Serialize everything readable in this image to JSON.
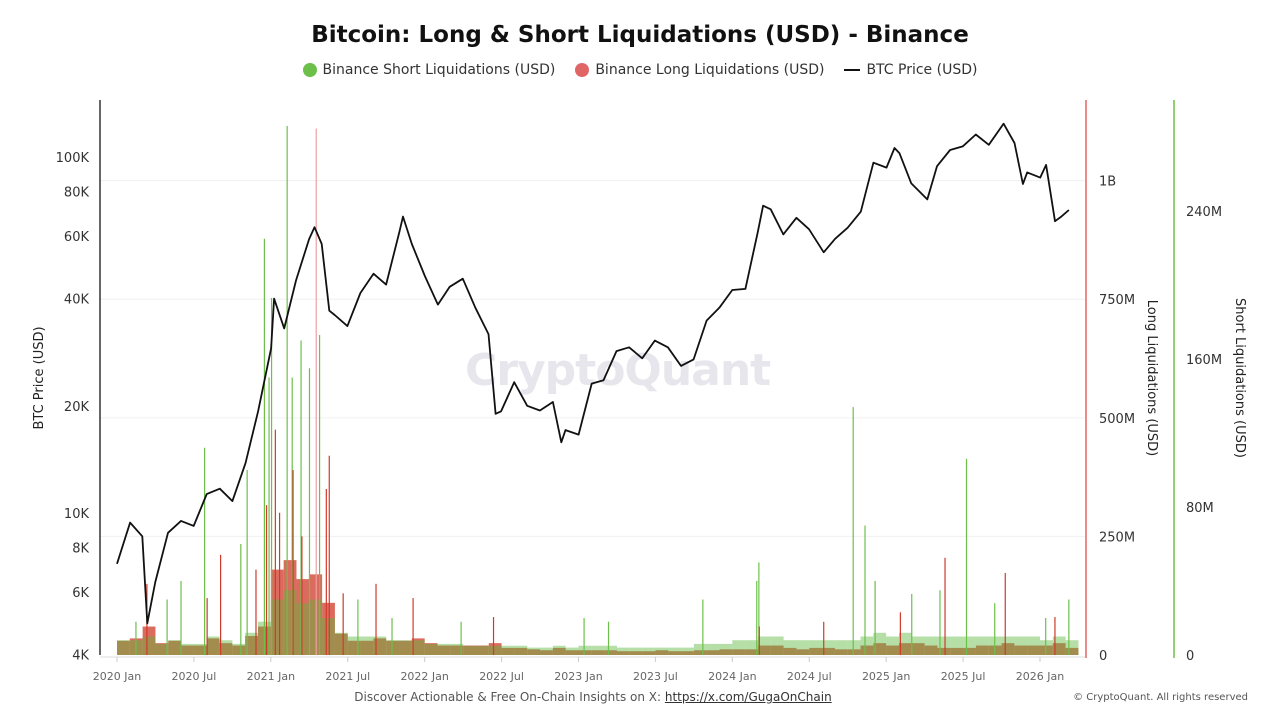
{
  "chart_data": {
    "type": "bar+line",
    "title": "Bitcoin: Long & Short Liquidations (USD) - Binance",
    "legend": {
      "placement": "top-center",
      "items": [
        {
          "label": "Binance Short Liquidations (USD)",
          "color": "#6cc04a",
          "marker": "dot"
        },
        {
          "label": "Binance Long Liquidations (USD)",
          "color": "#e06666",
          "marker": "dot"
        },
        {
          "label": "BTC Price (USD)",
          "color": "#111111",
          "marker": "line"
        }
      ]
    },
    "xlabel": "",
    "x_ticks": [
      "2020 Jan",
      "2020 Jul",
      "2021 Jan",
      "2021 Jul",
      "2022 Jan",
      "2022 Jul",
      "2023 Jan",
      "2023 Jul",
      "2024 Jan",
      "2024 Jul",
      "2025 Jan",
      "2025 Jul",
      "2026 Jan"
    ],
    "x_range": [
      "2020-01-01",
      "2026-03-15"
    ],
    "axes": {
      "price": {
        "label": "BTC Price (USD)",
        "scale": "log",
        "range": [
          4000,
          144000
        ],
        "ticks": [
          {
            "v": 4000,
            "t": "4K"
          },
          {
            "v": 6000,
            "t": "6K"
          },
          {
            "v": 8000,
            "t": "8K"
          },
          {
            "v": 10000,
            "t": "10K"
          },
          {
            "v": 20000,
            "t": "20K"
          },
          {
            "v": 40000,
            "t": "40K"
          },
          {
            "v": 60000,
            "t": "60K"
          },
          {
            "v": 80000,
            "t": "80K"
          },
          {
            "v": 100000,
            "t": "100K"
          }
        ]
      },
      "long": {
        "label": "Long Liquidations (USD)",
        "scale": "linear",
        "range": [
          0,
          1170000000
        ],
        "color": "#e06666",
        "ticks": [
          {
            "v": 0,
            "t": "0"
          },
          {
            "v": 250000000,
            "t": "250M"
          },
          {
            "v": 500000000,
            "t": "500M"
          },
          {
            "v": 750000000,
            "t": "750M"
          },
          {
            "v": 1000000000,
            "t": "1B"
          }
        ]
      },
      "short": {
        "label": "Short Liquidations (USD)",
        "scale": "linear",
        "range": [
          0,
          300000000
        ],
        "color": "#6cc04a",
        "ticks": [
          {
            "v": 0,
            "t": "0"
          },
          {
            "v": 80000000,
            "t": "80M"
          },
          {
            "v": 160000000,
            "t": "160M"
          },
          {
            "v": 240000000,
            "t": "240M"
          }
        ]
      }
    },
    "grid": true,
    "btc_price": [
      [
        "2020-01-01",
        7200
      ],
      [
        "2020-02-01",
        9400
      ],
      [
        "2020-03-01",
        8600
      ],
      [
        "2020-03-13",
        4900
      ],
      [
        "2020-04-01",
        6400
      ],
      [
        "2020-05-01",
        8800
      ],
      [
        "2020-06-01",
        9500
      ],
      [
        "2020-07-01",
        9200
      ],
      [
        "2020-08-01",
        11300
      ],
      [
        "2020-09-01",
        11700
      ],
      [
        "2020-10-01",
        10800
      ],
      [
        "2020-11-01",
        13800
      ],
      [
        "2020-12-01",
        19300
      ],
      [
        "2021-01-01",
        29000
      ],
      [
        "2021-01-08",
        40000
      ],
      [
        "2021-02-01",
        33000
      ],
      [
        "2021-03-01",
        45000
      ],
      [
        "2021-04-01",
        58800
      ],
      [
        "2021-04-14",
        63500
      ],
      [
        "2021-05-01",
        57000
      ],
      [
        "2021-05-19",
        37000
      ],
      [
        "2021-06-01",
        36000
      ],
      [
        "2021-07-01",
        33500
      ],
      [
        "2021-08-01",
        41500
      ],
      [
        "2021-09-01",
        47000
      ],
      [
        "2021-10-01",
        43800
      ],
      [
        "2021-11-01",
        61300
      ],
      [
        "2021-11-10",
        68000
      ],
      [
        "2021-12-01",
        57000
      ],
      [
        "2022-01-01",
        46300
      ],
      [
        "2022-02-01",
        38500
      ],
      [
        "2022-03-01",
        43200
      ],
      [
        "2022-04-01",
        45500
      ],
      [
        "2022-05-01",
        37700
      ],
      [
        "2022-06-01",
        31800
      ],
      [
        "2022-06-18",
        19000
      ],
      [
        "2022-07-01",
        19300
      ],
      [
        "2022-08-01",
        23300
      ],
      [
        "2022-09-01",
        20000
      ],
      [
        "2022-10-01",
        19400
      ],
      [
        "2022-11-01",
        20500
      ],
      [
        "2022-11-21",
        15800
      ],
      [
        "2022-12-01",
        17100
      ],
      [
        "2023-01-01",
        16600
      ],
      [
        "2023-02-01",
        23100
      ],
      [
        "2023-03-01",
        23600
      ],
      [
        "2023-04-01",
        28500
      ],
      [
        "2023-05-01",
        29200
      ],
      [
        "2023-06-01",
        27200
      ],
      [
        "2023-07-01",
        30500
      ],
      [
        "2023-08-01",
        29200
      ],
      [
        "2023-09-01",
        25900
      ],
      [
        "2023-10-01",
        27000
      ],
      [
        "2023-11-01",
        34700
      ],
      [
        "2023-12-01",
        37700
      ],
      [
        "2024-01-01",
        42300
      ],
      [
        "2024-02-01",
        42600
      ],
      [
        "2024-03-01",
        61200
      ],
      [
        "2024-03-14",
        73000
      ],
      [
        "2024-04-01",
        71300
      ],
      [
        "2024-05-01",
        60600
      ],
      [
        "2024-06-01",
        67500
      ],
      [
        "2024-07-01",
        62700
      ],
      [
        "2024-08-05",
        54000
      ],
      [
        "2024-09-01",
        58900
      ],
      [
        "2024-10-01",
        63300
      ],
      [
        "2024-11-01",
        70200
      ],
      [
        "2024-12-01",
        96400
      ],
      [
        "2025-01-01",
        93400
      ],
      [
        "2025-01-20",
        106000
      ],
      [
        "2025-02-01",
        102400
      ],
      [
        "2025-03-01",
        84300
      ],
      [
        "2025-04-08",
        76000
      ],
      [
        "2025-05-01",
        94200
      ],
      [
        "2025-06-01",
        104600
      ],
      [
        "2025-07-01",
        107100
      ],
      [
        "2025-08-01",
        115700
      ],
      [
        "2025-09-01",
        108200
      ],
      [
        "2025-10-06",
        124000
      ],
      [
        "2025-11-01",
        109500
      ],
      [
        "2025-11-21",
        84000
      ],
      [
        "2025-12-01",
        90500
      ],
      [
        "2026-01-01",
        87500
      ],
      [
        "2026-01-15",
        95000
      ],
      [
        "2026-02-05",
        66000
      ],
      [
        "2026-02-20",
        68000
      ],
      [
        "2026-03-10",
        71000
      ]
    ],
    "long_liquidations_peaks": [
      [
        "2020-03-12",
        150000000
      ],
      [
        "2020-08-02",
        120000000
      ],
      [
        "2020-09-03",
        211000000
      ],
      [
        "2020-11-26",
        180000000
      ],
      [
        "2020-12-21",
        316000000
      ],
      [
        "2021-01-11",
        475000000
      ],
      [
        "2021-01-21",
        300000000
      ],
      [
        "2021-02-22",
        390000000
      ],
      [
        "2021-03-15",
        250000000
      ],
      [
        "2021-04-18",
        1110000000
      ],
      [
        "2021-05-12",
        350000000
      ],
      [
        "2021-05-19",
        420000000
      ],
      [
        "2021-06-21",
        130000000
      ],
      [
        "2021-09-07",
        150000000
      ],
      [
        "2021-12-04",
        120000000
      ],
      [
        "2022-06-13",
        80000000
      ],
      [
        "2024-03-05",
        60000000
      ],
      [
        "2024-08-05",
        70000000
      ],
      [
        "2025-02-03",
        90000000
      ],
      [
        "2025-05-20",
        205000000
      ],
      [
        "2025-10-10",
        173000000
      ],
      [
        "2026-02-05",
        80000000
      ]
    ],
    "short_liquidations_peaks": [
      [
        "2020-02-15",
        18000000
      ],
      [
        "2020-04-29",
        30000000
      ],
      [
        "2020-06-01",
        40000000
      ],
      [
        "2020-07-27",
        112000000
      ],
      [
        "2020-10-21",
        60000000
      ],
      [
        "2020-11-05",
        100000000
      ],
      [
        "2020-12-16",
        225000000
      ],
      [
        "2020-12-27",
        150000000
      ],
      [
        "2021-01-02",
        193000000
      ],
      [
        "2021-02-08",
        286000000
      ],
      [
        "2021-02-20",
        150000000
      ],
      [
        "2021-03-13",
        170000000
      ],
      [
        "2021-04-02",
        155000000
      ],
      [
        "2021-04-26",
        173000000
      ],
      [
        "2021-07-26",
        30000000
      ],
      [
        "2021-10-15",
        20000000
      ],
      [
        "2022-03-28",
        18000000
      ],
      [
        "2023-01-14",
        20000000
      ],
      [
        "2023-03-13",
        18000000
      ],
      [
        "2023-10-23",
        30000000
      ],
      [
        "2024-02-28",
        40000000
      ],
      [
        "2024-03-04",
        50000000
      ],
      [
        "2024-10-14",
        134000000
      ],
      [
        "2024-11-11",
        70000000
      ],
      [
        "2024-12-05",
        40000000
      ],
      [
        "2025-03-02",
        33000000
      ],
      [
        "2025-05-08",
        35000000
      ],
      [
        "2025-07-10",
        106000000
      ],
      [
        "2025-09-15",
        28000000
      ],
      [
        "2026-01-14",
        20000000
      ],
      [
        "2026-03-10",
        30000000
      ]
    ],
    "long_liquidations_monthly_typical": [
      30,
      35,
      60,
      25,
      30,
      20,
      20,
      35,
      25,
      20,
      40,
      60,
      180,
      200,
      160,
      170,
      110,
      45,
      30,
      30,
      35,
      30,
      30,
      35,
      25,
      20,
      20,
      20,
      20,
      25,
      15,
      15,
      12,
      10,
      15,
      10,
      10,
      10,
      10,
      8,
      8,
      8,
      10,
      8,
      8,
      10,
      10,
      12,
      12,
      12,
      20,
      20,
      15,
      12,
      15,
      15,
      12,
      12,
      20,
      25,
      20,
      25,
      25,
      20,
      15,
      15,
      15,
      20,
      20,
      25,
      20,
      20,
      20,
      25,
      15
    ],
    "short_liquidations_monthly_typical": [
      8,
      8,
      10,
      6,
      8,
      6,
      6,
      10,
      8,
      6,
      12,
      18,
      30,
      35,
      28,
      30,
      20,
      12,
      10,
      10,
      10,
      8,
      8,
      8,
      6,
      6,
      6,
      5,
      5,
      5,
      5,
      5,
      4,
      4,
      5,
      4,
      5,
      5,
      5,
      4,
      4,
      4,
      4,
      4,
      4,
      6,
      6,
      6,
      8,
      8,
      10,
      10,
      8,
      8,
      8,
      8,
      8,
      8,
      10,
      12,
      10,
      12,
      10,
      10,
      10,
      10,
      10,
      10,
      10,
      10,
      10,
      10,
      8,
      10,
      8
    ]
  },
  "watermark": "CryptoQuant",
  "footer": {
    "text": "Discover Actionable & Free On-Chain Insights on X: ",
    "link": "https://x.com/GugaOnChain",
    "copyright": "© CryptoQuant. All rights reserved"
  }
}
